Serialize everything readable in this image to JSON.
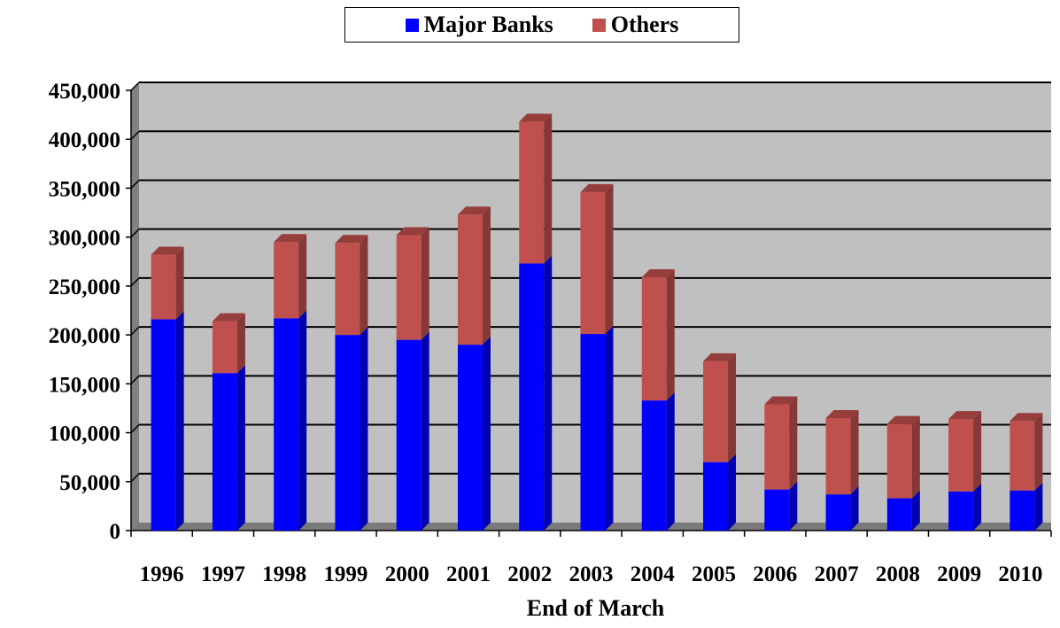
{
  "chart_data": {
    "type": "bar",
    "stacked": true,
    "categories": [
      "1996",
      "1997",
      "1998",
      "1999",
      "2000",
      "2001",
      "2002",
      "2003",
      "2004",
      "2005",
      "2006",
      "2007",
      "2008",
      "2009",
      "2010"
    ],
    "series": [
      {
        "name": "Major Banks",
        "color": "#0000ff",
        "values": [
          216000,
          161000,
          217000,
          200000,
          195000,
          190000,
          273000,
          201000,
          133000,
          70000,
          42000,
          37000,
          33000,
          40000,
          41000
        ]
      },
      {
        "name": "Others",
        "color": "#c0504d",
        "values": [
          66000,
          53000,
          78000,
          94000,
          107000,
          133000,
          145000,
          145000,
          126000,
          103000,
          87000,
          78000,
          76000,
          74000,
          71000
        ]
      }
    ],
    "xlabel": "End of March",
    "ylim": [
      0,
      450000
    ],
    "yticks": [
      "0",
      "50,000",
      "100,000",
      "150,000",
      "200,000",
      "250,000",
      "300,000",
      "350,000",
      "400,000",
      "450,000"
    ],
    "grid": true,
    "legend_position": "top-center",
    "plot_background": "#c0c0c0"
  }
}
